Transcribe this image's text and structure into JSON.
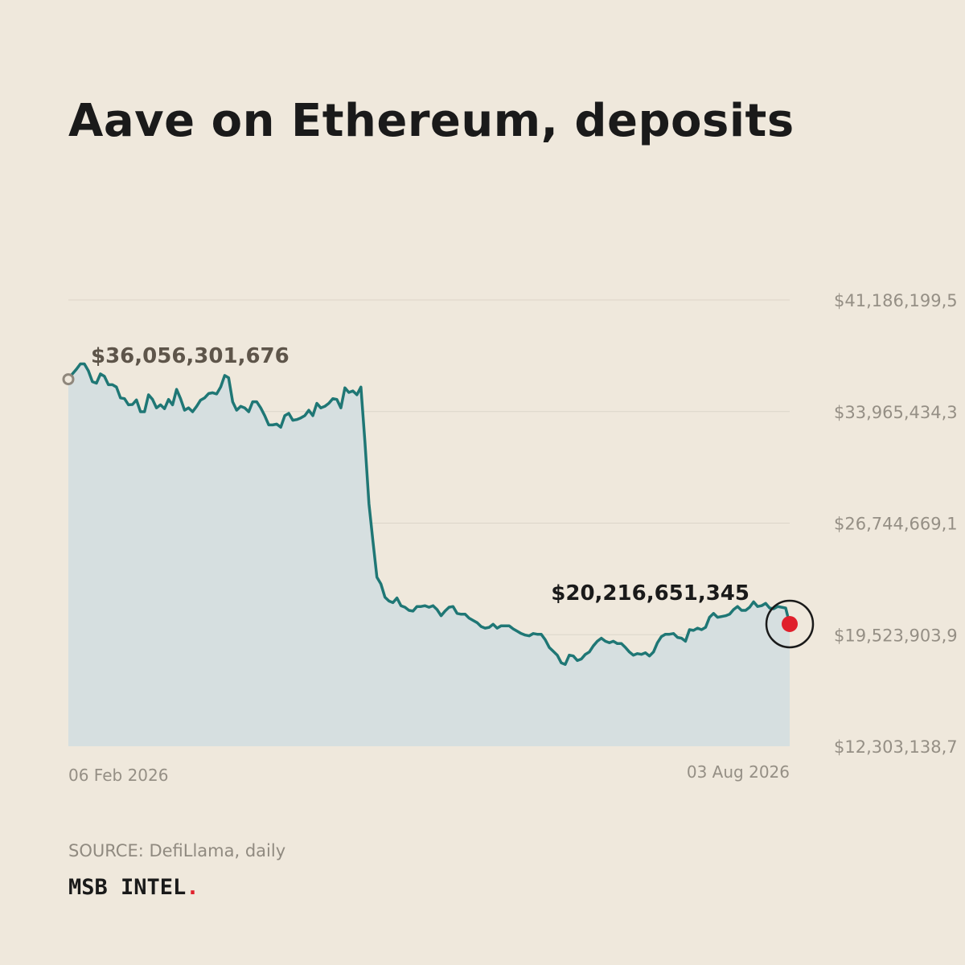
{
  "title": "Aave on Ethereum, deposits",
  "source": "SOURCE: DefiLlama, daily",
  "brand": {
    "name": "MSB INTEL",
    "dot": "."
  },
  "colors": {
    "background": "#efe8dc",
    "line": "#1f7775",
    "area": "#d6dfe0",
    "grid": "#dcd5c9",
    "axis_text": "#958f85",
    "start_label": "#5e554a",
    "end_label": "#1a1a1a",
    "end_marker": "#e0202c",
    "brand_dot": "#e0202c"
  },
  "chart_data": {
    "type": "area",
    "title": "Aave on Ethereum, deposits",
    "xlabel": "",
    "ylabel": "",
    "grid": true,
    "ylim": [
      12303138700,
      41186199500
    ],
    "y_ticks": [
      {
        "value": 41186199500,
        "label": "$41,186,199,5"
      },
      {
        "value": 33965434300,
        "label": "$33,965,434,3"
      },
      {
        "value": 26744669100,
        "label": "$26,744,669,1"
      },
      {
        "value": 19523903900,
        "label": "$19,523,903,9"
      },
      {
        "value": 12303138700,
        "label": "$12,303,138,7"
      }
    ],
    "x_start_label": "06 Feb 2026",
    "x_end_label": "03 Aug 2026",
    "start": {
      "label": "$36,056,301,676",
      "value": 36056301676
    },
    "end": {
      "label": "$20,216,651,345",
      "value": 20216651345
    },
    "series": [
      {
        "values": [
          36056301676,
          36400000000,
          36700000000,
          37050000000,
          37050000000,
          36600000000,
          35900000000,
          35800000000,
          36400000000,
          36250000000,
          35700000000,
          35700000000,
          35550000000,
          34850000000,
          34800000000,
          34400000000,
          34420000000,
          34720000000,
          33950000000,
          33950000000,
          35050000000,
          34750000000,
          34200000000,
          34400000000,
          34150000000,
          34750000000,
          34400000000,
          35400000000,
          34800000000,
          34050000000,
          34200000000,
          33950000000,
          34300000000,
          34700000000,
          34850000000,
          35130000000,
          35180000000,
          35100000000,
          35550000000,
          36300000000,
          36150000000,
          34600000000,
          34050000000,
          34300000000,
          34200000000,
          33950000000,
          34600000000,
          34600000000,
          34200000000,
          33700000000,
          33100000000,
          33100000000,
          33150000000,
          32950000000,
          33700000000,
          33850000000,
          33400000000,
          33450000000,
          33550000000,
          33700000000,
          34050000000,
          33700000000,
          34500000000,
          34200000000,
          34300000000,
          34500000000,
          34800000000,
          34750000000,
          34200000000,
          35500000000,
          35200000000,
          35300000000,
          35050000000,
          35550000000,
          32000000000,
          28000000000,
          25600000000,
          23250000000,
          22800000000,
          21950000000,
          21700000000,
          21600000000,
          21900000000,
          21400000000,
          21300000000,
          21100000000,
          21050000000,
          21350000000,
          21350000000,
          21400000000,
          21300000000,
          21400000000,
          21150000000,
          20750000000,
          21050000000,
          21300000000,
          21350000000,
          20900000000,
          20850000000,
          20850000000,
          20600000000,
          20450000000,
          20300000000,
          20050000000,
          19950000000,
          20000000000,
          20200000000,
          19950000000,
          20100000000,
          20100000000,
          20100000000,
          19900000000,
          19750000000,
          19600000000,
          19500000000,
          19450000000,
          19600000000,
          19550000000,
          19550000000,
          19200000000,
          18700000000,
          18450000000,
          18200000000,
          17700000000,
          17600000000,
          18200000000,
          18150000000,
          17850000000,
          17950000000,
          18250000000,
          18400000000,
          18800000000,
          19100000000,
          19300000000,
          19100000000,
          19000000000,
          19100000000,
          18950000000,
          18950000000,
          18700000000,
          18400000000,
          18200000000,
          18300000000,
          18250000000,
          18350000000,
          18150000000,
          18400000000,
          19000000000,
          19400000000,
          19550000000,
          19550000000,
          19600000000,
          19350000000,
          19300000000,
          19100000000,
          19850000000,
          19800000000,
          19950000000,
          19850000000,
          20000000000,
          20650000000,
          20900000000,
          20650000000,
          20700000000,
          20750000000,
          20850000000,
          21150000000,
          21350000000,
          21100000000,
          21100000000,
          21300000000,
          21650000000,
          21350000000,
          21400000000,
          21550000000,
          21250000000,
          21200000000,
          21350000000,
          21300000000,
          21250000000,
          20216651345
        ]
      }
    ]
  }
}
